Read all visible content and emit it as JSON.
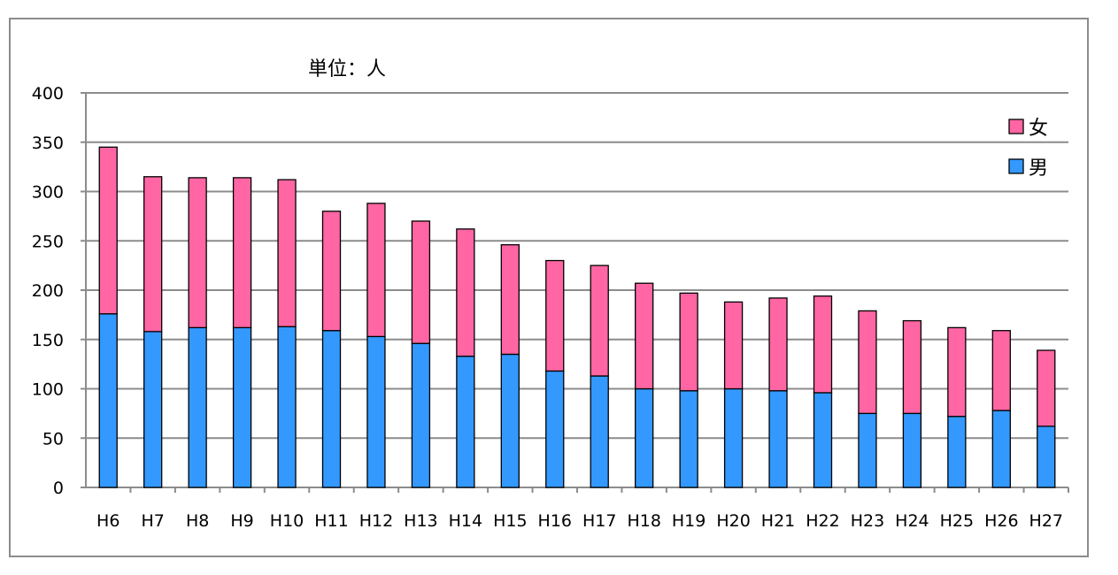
{
  "chart_data": {
    "type": "bar",
    "stacked": true,
    "unit_label": "単位：人",
    "categories": [
      "H6",
      "H7",
      "H8",
      "H9",
      "H10",
      "H11",
      "H12",
      "H13",
      "H14",
      "H15",
      "H16",
      "H17",
      "H18",
      "H19",
      "H20",
      "H21",
      "H22",
      "H23",
      "H24",
      "H25",
      "H26",
      "H27"
    ],
    "series": [
      {
        "name": "男",
        "color": "#3399ff",
        "values": [
          176,
          158,
          162,
          162,
          163,
          159,
          153,
          146,
          133,
          135,
          118,
          113,
          100,
          98,
          100,
          98,
          96,
          75,
          75,
          72,
          78,
          62
        ]
      },
      {
        "name": "女",
        "color": "#ff66a3",
        "values": [
          169,
          157,
          152,
          152,
          149,
          121,
          135,
          124,
          129,
          111,
          112,
          112,
          107,
          99,
          88,
          94,
          98,
          104,
          94,
          90,
          81,
          77
        ]
      }
    ],
    "ylim": [
      0,
      400
    ],
    "yticks": [
      0,
      50,
      100,
      150,
      200,
      250,
      300,
      350,
      400
    ],
    "grid": true,
    "legend_position": "top-right"
  }
}
